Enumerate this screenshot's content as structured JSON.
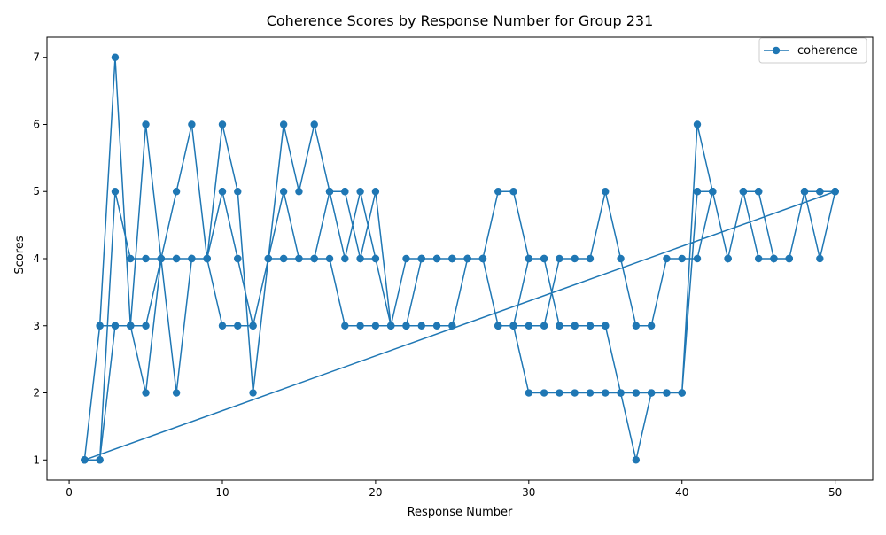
{
  "chart_data": {
    "type": "line",
    "title": "Coherence Scores by Response Number for Group 231",
    "xlabel": "Response Number",
    "ylabel": "Scores",
    "xlim": [
      -1.45,
      52.45
    ],
    "ylim": [
      0.7,
      7.3
    ],
    "xticks": [
      0,
      10,
      20,
      30,
      40,
      50
    ],
    "yticks": [
      1,
      2,
      3,
      4,
      5,
      6,
      7
    ],
    "grid": false,
    "legend_position": "top-right",
    "series": [
      {
        "name": "coherence",
        "color": "#1f77b4",
        "marker": "circle",
        "segments": [
          {
            "x": [
              1,
              2,
              3,
              4,
              5,
              6,
              7,
              8,
              9,
              10,
              11,
              12,
              13,
              14,
              15,
              16,
              17,
              18,
              19,
              20,
              21,
              22,
              23,
              24,
              25,
              26,
              27,
              28,
              29,
              30,
              31,
              32,
              33,
              34,
              35,
              36,
              37,
              38,
              39,
              40,
              41,
              42,
              43,
              44,
              45,
              46,
              47,
              48,
              49,
              50
            ],
            "y": [
              1,
              3,
              7,
              3,
              6,
              4,
              5,
              6,
              4,
              6,
              5,
              2,
              4,
              6,
              5,
              6,
              5,
              5,
              4,
              5,
              3,
              4,
              4,
              4,
              4,
              4,
              4,
              5,
              5,
              4,
              4,
              3,
              3,
              3,
              3,
              2,
              2,
              2,
              2,
              2,
              6,
              5,
              4,
              5,
              5,
              4,
              4,
              5,
              5,
              5
            ]
          },
          {
            "x": [
              1,
              2,
              3,
              4,
              5,
              6,
              7,
              8,
              9,
              10,
              11,
              12,
              13,
              14,
              15,
              16,
              17,
              18,
              19,
              20,
              21,
              22,
              23,
              24,
              25,
              26,
              27,
              28,
              29,
              30,
              31,
              32,
              33,
              34,
              35,
              36,
              37,
              38,
              39,
              40,
              41,
              42,
              43,
              44,
              45,
              46,
              47,
              48,
              49,
              50
            ],
            "y": [
              1,
              1,
              5,
              4,
              4,
              4,
              4,
              4,
              4,
              3,
              3,
              3,
              4,
              5,
              4,
              4,
              5,
              4,
              5,
              4,
              3,
              3,
              3,
              3,
              3,
              4,
              4,
              3,
              3,
              2,
              2,
              2,
              2,
              2,
              2,
              2,
              1,
              2,
              2,
              2,
              5,
              5,
              4,
              5,
              5,
              4,
              4,
              5,
              4,
              5
            ]
          },
          {
            "x": [
              1,
              2,
              3,
              4,
              5,
              6,
              7,
              8,
              9,
              10,
              11,
              12,
              13,
              14,
              15,
              16,
              17,
              18,
              19,
              20,
              21,
              22,
              23,
              24,
              25,
              26,
              27,
              28,
              29,
              30,
              31,
              32,
              33,
              34,
              35,
              36,
              37,
              38,
              39,
              40,
              41,
              42,
              43,
              44,
              45,
              46,
              47,
              48,
              49,
              50
            ],
            "y": [
              1,
              3,
              3,
              3,
              2,
              4,
              2,
              4,
              4,
              5,
              4,
              3,
              4,
              4,
              4,
              4,
              4,
              3,
              3,
              3,
              3,
              3,
              4,
              4,
              4,
              4,
              4,
              3,
              3,
              3,
              3,
              4,
              4,
              4,
              5,
              4,
              3,
              3,
              4,
              4,
              4,
              5,
              4,
              5,
              4,
              4,
              4,
              5,
              5,
              5
            ]
          },
          {
            "x": [
              1,
              2,
              3,
              4,
              5,
              6,
              7,
              8,
              9,
              10,
              11,
              12,
              13,
              14,
              15,
              16,
              17,
              18,
              19,
              20,
              21,
              22,
              23,
              24,
              25,
              26,
              27,
              28,
              29,
              30,
              31,
              32,
              33,
              34,
              35,
              36,
              37,
              38,
              39,
              40,
              41,
              42,
              43,
              44,
              45,
              46,
              47,
              48,
              49,
              50
            ],
            "y": [
              1,
              1,
              3,
              3,
              3,
              4,
              4,
              4,
              4,
              5,
              4,
              3,
              4,
              4,
              4,
              4,
              5,
              5,
              4,
              4,
              3,
              3,
              4,
              4,
              4,
              4,
              4,
              3,
              3,
              4,
              4,
              3,
              3,
              3,
              3,
              2,
              2,
              2,
              2,
              2,
              5,
              5,
              4,
              5,
              5,
              4,
              4,
              5,
              5,
              5
            ]
          }
        ]
      }
    ]
  }
}
